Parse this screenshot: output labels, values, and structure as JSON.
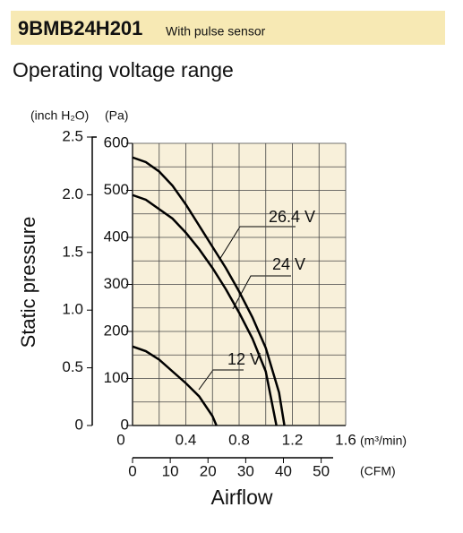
{
  "header": {
    "model": "9BMB24H201",
    "note": "With pulse sensor"
  },
  "chart_data": {
    "type": "line",
    "title": "Operating voltage range",
    "ylabel": "Static pressure",
    "xlabel": "Airflow",
    "y_unit": "(Pa)",
    "y2_unit": "(inch H₂O)",
    "x_unit": "(m³/min)",
    "x2_unit": "(CFM)",
    "xlim": [
      0,
      1.6
    ],
    "xticks": [
      0,
      0.4,
      0.8,
      1.2,
      1.6
    ],
    "xminorticks": [
      0.2,
      0.6,
      1.0,
      1.4
    ],
    "ylim": [
      0,
      600
    ],
    "yticks": [
      0,
      100,
      200,
      300,
      400,
      500,
      600
    ],
    "yminorticks": [
      50,
      150,
      250,
      350,
      450,
      550
    ],
    "y2lim": [
      0,
      2.5
    ],
    "y2ticks": [
      0,
      0.5,
      {
        "value": 1,
        "label": "1.0"
      },
      1.5,
      {
        "value": 2,
        "label": "2.0"
      },
      2.5
    ],
    "x2lim": [
      0,
      56.5
    ],
    "x2ticks": [
      0,
      10,
      20,
      30,
      40,
      50
    ],
    "grid": true,
    "series": [
      {
        "name": "26.4 V",
        "color": "#000000",
        "x": [
          0,
          0.1,
          0.2,
          0.3,
          0.4,
          0.5,
          0.6,
          0.7,
          0.8,
          0.9,
          1.0,
          1.1,
          1.14
        ],
        "values": [
          570,
          560,
          540,
          510,
          470,
          425,
          380,
          335,
          285,
          230,
          165,
          70,
          0
        ]
      },
      {
        "name": "24 V",
        "color": "#000000",
        "x": [
          0,
          0.1,
          0.2,
          0.3,
          0.4,
          0.5,
          0.6,
          0.7,
          0.8,
          0.9,
          1.0,
          1.08
        ],
        "values": [
          490,
          480,
          460,
          440,
          410,
          375,
          335,
          290,
          240,
          185,
          115,
          0
        ]
      },
      {
        "name": "12 V",
        "color": "#000000",
        "x": [
          0,
          0.1,
          0.2,
          0.3,
          0.4,
          0.5,
          0.6,
          0.63
        ],
        "values": [
          168,
          158,
          140,
          115,
          90,
          62,
          20,
          0
        ]
      }
    ]
  }
}
